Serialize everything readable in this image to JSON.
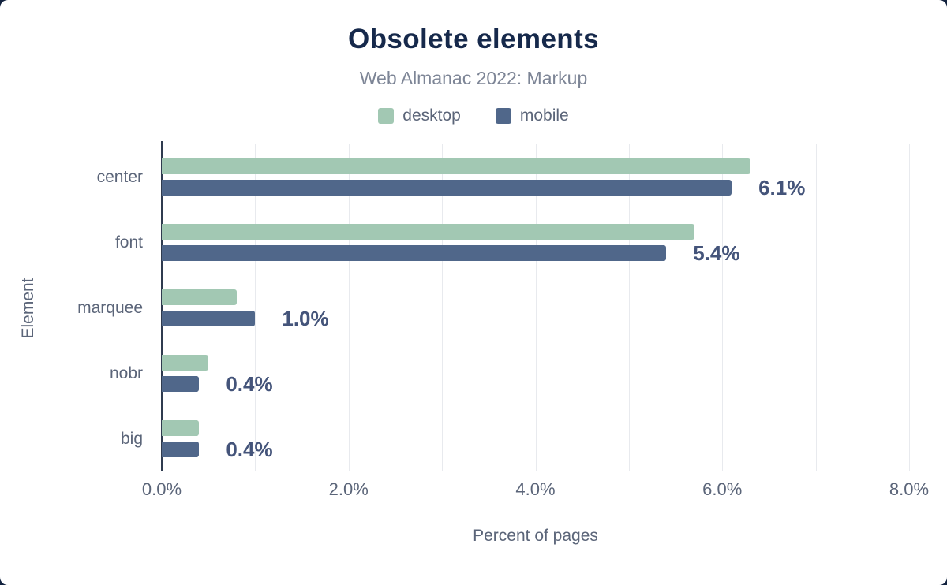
{
  "title": "Obsolete elements",
  "subtitle": "Web Almanac 2022: Markup",
  "axes": {
    "ylabel": "Element",
    "xlabel": "Percent of pages"
  },
  "chart_data": {
    "type": "bar",
    "orientation": "horizontal",
    "title": "Obsolete elements",
    "subtitle": "Web Almanac 2022: Markup",
    "categories": [
      "center",
      "font",
      "marquee",
      "nobr",
      "big"
    ],
    "series": [
      {
        "name": "desktop",
        "color": "#a2c8b3",
        "values": [
          6.3,
          5.7,
          0.8,
          0.5,
          0.4
        ]
      },
      {
        "name": "mobile",
        "color": "#50678a",
        "values": [
          6.1,
          5.4,
          1.0,
          0.4,
          0.4
        ]
      }
    ],
    "value_labels": [
      "6.1%",
      "5.4%",
      "1.0%",
      "0.4%",
      "0.4%"
    ],
    "value_labels_refer_to": "mobile",
    "xlabel": "Percent of pages",
    "ylabel": "Element",
    "xlim": [
      0,
      8
    ],
    "xticks": [
      {
        "value": 0,
        "label": "0.0%"
      },
      {
        "value": 2,
        "label": "2.0%"
      },
      {
        "value": 4,
        "label": "4.0%"
      },
      {
        "value": 6,
        "label": "6.0%"
      },
      {
        "value": 8,
        "label": "8.0%"
      }
    ],
    "gridline_step": 1,
    "grid": true,
    "legend_position": "top"
  },
  "colors": {
    "background_frame": "#13233f",
    "card": "#ffffff",
    "title": "#16294b",
    "subtitle": "#7d8596",
    "axis_text": "#5b6579",
    "value_label": "#44547a",
    "gridline": "#e8eaee",
    "axis_line": "#2f3b4f",
    "desktop": "#a2c8b3",
    "mobile": "#50678a"
  }
}
